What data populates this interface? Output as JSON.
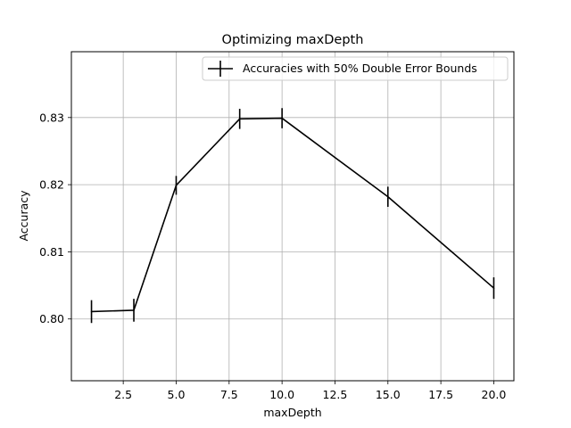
{
  "chart_data": {
    "type": "line",
    "title": "Optimizing maxDepth",
    "xlabel": "maxDepth",
    "ylabel": "Accuracy",
    "xlim": [
      0.05,
      20.95
    ],
    "ylim": [
      0.7908,
      0.8398
    ],
    "xticks": [
      2.5,
      5.0,
      7.5,
      10.0,
      12.5,
      15.0,
      17.5,
      20.0
    ],
    "xtick_labels": [
      "2.5",
      "5.0",
      "7.5",
      "10.0",
      "12.5",
      "15.0",
      "17.5",
      "20.0"
    ],
    "yticks": [
      0.8,
      0.81,
      0.82,
      0.83
    ],
    "ytick_labels": [
      "0.80",
      "0.81",
      "0.82",
      "0.83"
    ],
    "grid": true,
    "legend_position": "top-right",
    "series": [
      {
        "name": "Accuracies with 50% Double Error Bounds",
        "color": "#000000",
        "x": [
          1,
          3,
          5,
          8,
          10,
          15,
          20
        ],
        "y": [
          0.8011,
          0.8013,
          0.8199,
          0.8298,
          0.8299,
          0.8182,
          0.8046
        ],
        "yerr": [
          0.0017,
          0.0017,
          0.0014,
          0.0015,
          0.0015,
          0.0015,
          0.0016
        ]
      }
    ]
  }
}
